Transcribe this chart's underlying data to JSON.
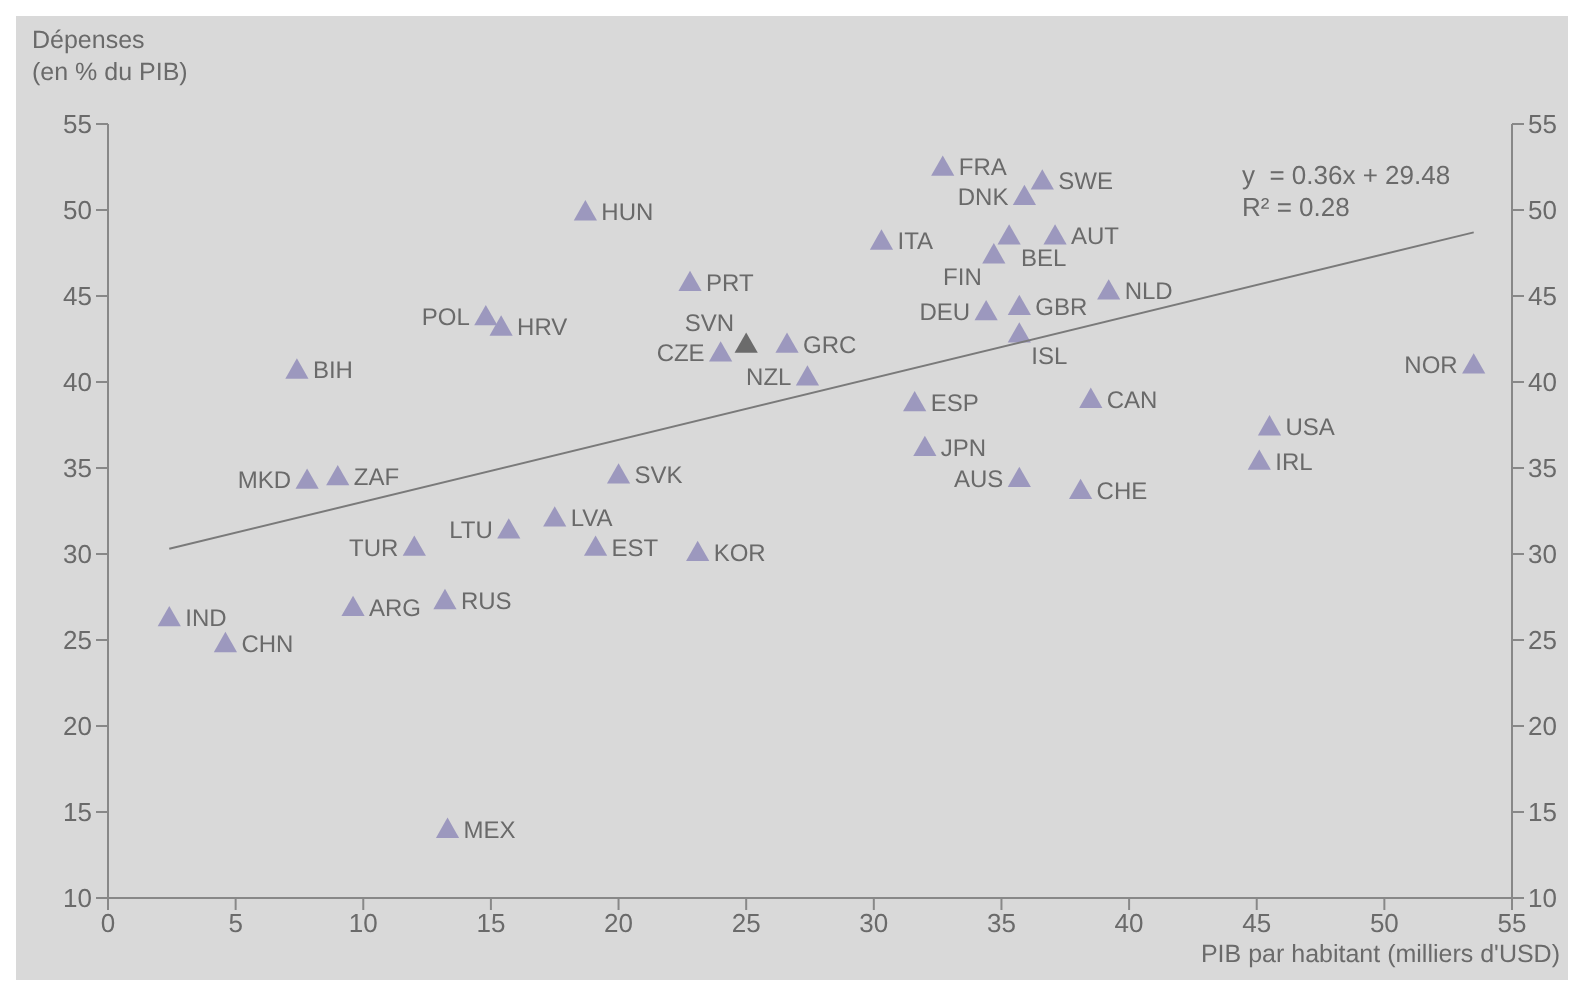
{
  "chart_data": {
    "type": "scatter",
    "xlabel": "PIB par habitant (milliers d'USD)",
    "ylabel": "Dépenses\n(en % du PIB)",
    "xlim": [
      0,
      55
    ],
    "xticks": [
      0,
      5,
      10,
      15,
      20,
      25,
      30,
      35,
      40,
      45,
      50,
      55
    ],
    "ylim": [
      10,
      55
    ],
    "yticks": [
      10,
      15,
      20,
      25,
      30,
      35,
      40,
      45,
      50,
      55
    ],
    "y2lim": [
      10,
      55
    ],
    "y2ticks": [
      10,
      15,
      20,
      25,
      30,
      35,
      40,
      45,
      50,
      55
    ],
    "grid": false,
    "legend": false,
    "series": [
      {
        "marker": "triangle",
        "color": "#9c98be",
        "x": [
          18.7,
          22.8,
          25.0,
          24.0,
          26.6,
          27.4,
          14.8,
          15.4,
          7.4,
          7.8,
          9.0,
          20.0,
          17.5,
          15.7,
          12.0,
          19.1,
          23.1,
          2.4,
          4.6,
          9.6,
          13.2,
          13.3,
          32.7,
          35.9,
          36.6,
          30.3,
          35.3,
          37.1,
          34.7,
          34.4,
          35.7,
          35.7,
          39.2,
          53.5,
          31.6,
          38.5,
          32.0,
          35.7,
          38.1,
          45.5,
          45.1
        ],
        "values": [
          49.9,
          45.8,
          42.2,
          41.7,
          42.2,
          40.3,
          43.8,
          43.2,
          40.7,
          34.3,
          34.5,
          34.6,
          32.1,
          31.4,
          30.4,
          30.4,
          30.1,
          26.3,
          24.8,
          26.9,
          27.3,
          14.0,
          52.5,
          50.8,
          51.7,
          48.2,
          48.5,
          48.5,
          47.4,
          44.1,
          44.4,
          42.8,
          45.3,
          41.0,
          38.8,
          39.0,
          36.2,
          34.4,
          33.7,
          37.4,
          35.4
        ],
        "colors": [
          "#9c98be",
          "#9c98be",
          "#6b6b6b",
          "#9c98be",
          "#9c98be",
          "#9c98be",
          "#9c98be",
          "#9c98be",
          "#9c98be",
          "#9c98be",
          "#9c98be",
          "#9c98be",
          "#9c98be",
          "#9c98be",
          "#9c98be",
          "#9c98be",
          "#9c98be",
          "#9c98be",
          "#9c98be",
          "#9c98be",
          "#9c98be",
          "#9c98be",
          "#9c98be",
          "#9c98be",
          "#9c98be",
          "#9c98be",
          "#9c98be",
          "#9c98be",
          "#9c98be",
          "#9c98be",
          "#9c98be",
          "#9c98be",
          "#9c98be",
          "#9c98be",
          "#9c98be",
          "#9c98be",
          "#9c98be",
          "#9c98be",
          "#9c98be",
          "#9c98be",
          "#9c98be"
        ]
      },
      {
        "type": "line",
        "color": "#7a7a7a",
        "x": [
          2.4,
          53.5
        ],
        "values": [
          30.3,
          48.7
        ]
      }
    ],
    "annotations": [
      "y  = 0.36x + 29.48",
      "R² = 0.28",
      {
        "text": "HUN",
        "x": 18.7,
        "y": 49.9
      },
      {
        "text": "PRT",
        "x": 22.8,
        "y": 45.8
      },
      {
        "text": "SVN",
        "x": 25.0,
        "y": 42.2
      },
      {
        "text": "CZE",
        "x": 24.0,
        "y": 41.7
      },
      {
        "text": "GRC",
        "x": 26.6,
        "y": 42.2
      },
      {
        "text": "NZL",
        "x": 27.4,
        "y": 40.3
      },
      {
        "text": "POL",
        "x": 14.8,
        "y": 43.8
      },
      {
        "text": "HRV",
        "x": 15.4,
        "y": 43.2
      },
      {
        "text": "BIH",
        "x": 7.4,
        "y": 40.7
      },
      {
        "text": "MKD",
        "x": 7.8,
        "y": 34.3
      },
      {
        "text": "ZAF",
        "x": 9.0,
        "y": 34.5
      },
      {
        "text": "SVK",
        "x": 20.0,
        "y": 34.6
      },
      {
        "text": "LVA",
        "x": 17.5,
        "y": 32.1
      },
      {
        "text": "LTU",
        "x": 15.7,
        "y": 31.4
      },
      {
        "text": "TUR",
        "x": 12.0,
        "y": 30.4
      },
      {
        "text": "EST",
        "x": 19.1,
        "y": 30.4
      },
      {
        "text": "KOR",
        "x": 23.1,
        "y": 30.1
      },
      {
        "text": "IND",
        "x": 2.4,
        "y": 26.3
      },
      {
        "text": "CHN",
        "x": 4.6,
        "y": 24.8
      },
      {
        "text": "ARG",
        "x": 9.6,
        "y": 26.9
      },
      {
        "text": "RUS",
        "x": 13.2,
        "y": 27.3
      },
      {
        "text": "MEX",
        "x": 13.3,
        "y": 14.0
      },
      {
        "text": "FRA",
        "x": 32.7,
        "y": 52.5
      },
      {
        "text": "DNK",
        "x": 35.9,
        "y": 50.8
      },
      {
        "text": "SWE",
        "x": 36.6,
        "y": 51.7
      },
      {
        "text": "ITA",
        "x": 30.3,
        "y": 48.2
      },
      {
        "text": "BEL",
        "x": 35.3,
        "y": 48.5
      },
      {
        "text": "AUT",
        "x": 37.1,
        "y": 48.5
      },
      {
        "text": "FIN",
        "x": 34.7,
        "y": 47.4
      },
      {
        "text": "DEU",
        "x": 34.4,
        "y": 44.1
      },
      {
        "text": "GBR",
        "x": 35.7,
        "y": 44.4
      },
      {
        "text": "ISL",
        "x": 35.7,
        "y": 42.8
      },
      {
        "text": "NLD",
        "x": 39.2,
        "y": 45.3
      },
      {
        "text": "NOR",
        "x": 53.5,
        "y": 41.0
      },
      {
        "text": "ESP",
        "x": 31.6,
        "y": 38.8
      },
      {
        "text": "CAN",
        "x": 38.5,
        "y": 39.0
      },
      {
        "text": "JPN",
        "x": 32.0,
        "y": 36.2
      },
      {
        "text": "AUS",
        "x": 35.7,
        "y": 34.4
      },
      {
        "text": "CHE",
        "x": 38.1,
        "y": 33.7
      },
      {
        "text": "USA",
        "x": 45.5,
        "y": 37.4
      },
      {
        "text": "IRL",
        "x": 45.1,
        "y": 35.4
      }
    ]
  }
}
